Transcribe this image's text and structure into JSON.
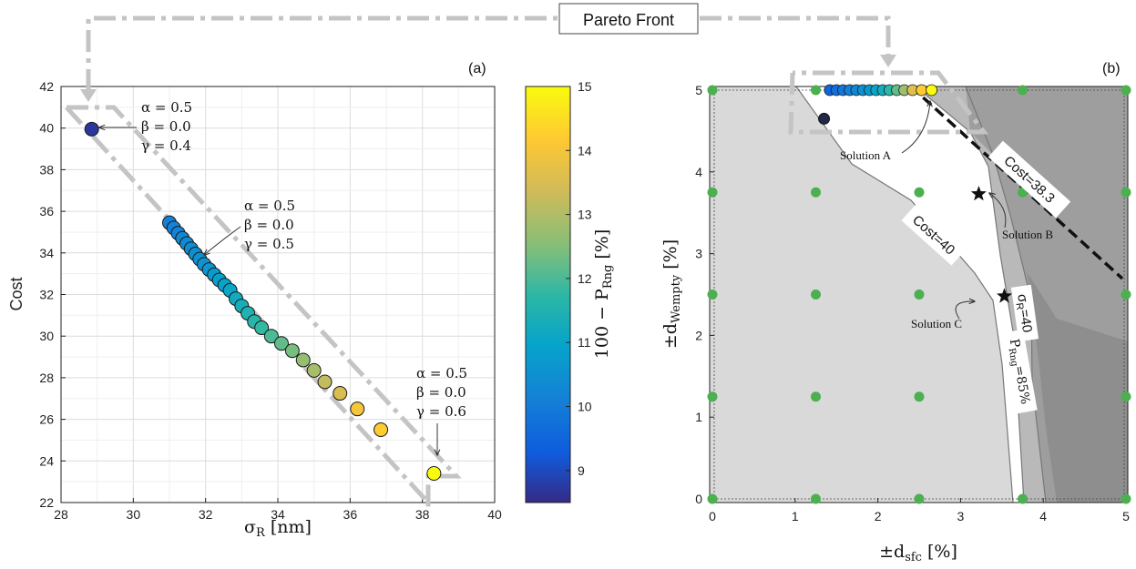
{
  "pareto_label": "Pareto Front",
  "chart_data": [
    {
      "type": "scatter",
      "panel_label": "(a)",
      "xlabel": "σ_R [nm]",
      "ylabel": "Cost",
      "xlim": [
        28,
        40
      ],
      "ylim": [
        22,
        42
      ],
      "xticks": [
        "28",
        "30",
        "32",
        "34",
        "36",
        "38",
        "40"
      ],
      "yticks": [
        "22",
        "24",
        "26",
        "28",
        "30",
        "32",
        "34",
        "36",
        "38",
        "40",
        "42"
      ],
      "grid": true,
      "colorbar": {
        "label": "100 − P_Rng [%]",
        "range": [
          8.5,
          15
        ],
        "ticks": [
          "9",
          "10",
          "11",
          "12",
          "13",
          "14",
          "15"
        ]
      },
      "points": [
        {
          "x": 28.85,
          "y": 39.95,
          "c": 8.7
        },
        {
          "x": 31.0,
          "y": 35.45,
          "c": 10.1
        },
        {
          "x": 31.12,
          "y": 35.2,
          "c": 10.15
        },
        {
          "x": 31.24,
          "y": 34.95,
          "c": 10.2
        },
        {
          "x": 31.36,
          "y": 34.7,
          "c": 10.3
        },
        {
          "x": 31.48,
          "y": 34.45,
          "c": 10.35
        },
        {
          "x": 31.6,
          "y": 34.2,
          "c": 10.4
        },
        {
          "x": 31.72,
          "y": 33.95,
          "c": 10.45
        },
        {
          "x": 31.84,
          "y": 33.7,
          "c": 10.5
        },
        {
          "x": 31.96,
          "y": 33.45,
          "c": 10.55
        },
        {
          "x": 32.1,
          "y": 33.2,
          "c": 10.65
        },
        {
          "x": 32.24,
          "y": 32.95,
          "c": 10.75
        },
        {
          "x": 32.38,
          "y": 32.7,
          "c": 10.85
        },
        {
          "x": 32.53,
          "y": 32.45,
          "c": 10.95
        },
        {
          "x": 32.68,
          "y": 32.2,
          "c": 11.05
        },
        {
          "x": 32.84,
          "y": 31.8,
          "c": 11.2
        },
        {
          "x": 33.0,
          "y": 31.45,
          "c": 11.35
        },
        {
          "x": 33.17,
          "y": 31.1,
          "c": 11.5
        },
        {
          "x": 33.35,
          "y": 30.7,
          "c": 11.65
        },
        {
          "x": 33.55,
          "y": 30.4,
          "c": 11.8
        },
        {
          "x": 33.82,
          "y": 30.0,
          "c": 12.0
        },
        {
          "x": 34.1,
          "y": 29.65,
          "c": 12.2
        },
        {
          "x": 34.4,
          "y": 29.3,
          "c": 12.4
        },
        {
          "x": 34.7,
          "y": 28.85,
          "c": 12.7
        },
        {
          "x": 35.0,
          "y": 28.35,
          "c": 12.9
        },
        {
          "x": 35.3,
          "y": 27.8,
          "c": 13.2
        },
        {
          "x": 35.72,
          "y": 27.25,
          "c": 13.5
        },
        {
          "x": 36.2,
          "y": 26.5,
          "c": 14.0
        },
        {
          "x": 36.85,
          "y": 25.5,
          "c": 14.2
        },
        {
          "x": 38.32,
          "y": 23.4,
          "c": 15.0
        }
      ],
      "annotations": [
        {
          "lines": [
            "α = 0.5",
            "β = 0.0",
            "γ = 0.4"
          ]
        },
        {
          "lines": [
            "α = 0.5",
            "β = 0.0",
            "γ = 0.5"
          ]
        },
        {
          "lines": [
            "α = 0.5",
            "β = 0.0",
            "γ = 0.6"
          ]
        }
      ]
    },
    {
      "type": "contour",
      "panel_label": "(b)",
      "xlabel": "±d_sfc [%]",
      "ylabel": "±d_Wempty [%]",
      "xlim": [
        0,
        5
      ],
      "ylim": [
        0,
        5
      ],
      "xticks": [
        "0",
        "1",
        "2",
        "3",
        "4",
        "5"
      ],
      "yticks": [
        "0",
        "1",
        "2",
        "3",
        "4",
        "5"
      ],
      "grid_points_x": [
        0,
        1.25,
        2.5,
        3.75,
        5
      ],
      "grid_points_y": [
        0,
        1.25,
        2.5,
        3.75,
        5
      ],
      "extra_point": {
        "x": 1.35,
        "y": 4.65
      },
      "pareto_points": [
        {
          "x": 1.42,
          "c": 9.5
        },
        {
          "x": 1.5,
          "c": 9.7
        },
        {
          "x": 1.58,
          "c": 9.9
        },
        {
          "x": 1.66,
          "c": 10.1
        },
        {
          "x": 1.74,
          "c": 10.3
        },
        {
          "x": 1.82,
          "c": 10.5
        },
        {
          "x": 1.9,
          "c": 10.7
        },
        {
          "x": 1.98,
          "c": 11.0
        },
        {
          "x": 2.06,
          "c": 11.3
        },
        {
          "x": 2.14,
          "c": 11.7
        },
        {
          "x": 2.23,
          "c": 12.2
        },
        {
          "x": 2.32,
          "c": 12.8
        },
        {
          "x": 2.42,
          "c": 13.6
        },
        {
          "x": 2.53,
          "c": 14.2
        },
        {
          "x": 2.65,
          "c": 15.0
        }
      ],
      "solutions": [
        {
          "label": "Solution A",
          "x": 2.65,
          "y": 5.0
        },
        {
          "label": "Solution B",
          "x": 3.22,
          "y": 3.73
        },
        {
          "label": "Solution C",
          "x": 3.53,
          "y": 2.48
        }
      ],
      "contour_labels": {
        "cost38": "Cost=38.3",
        "cost40": "Cost=40",
        "sigma": "σ_R=40",
        "prng": "P_Rng=85%"
      }
    }
  ]
}
